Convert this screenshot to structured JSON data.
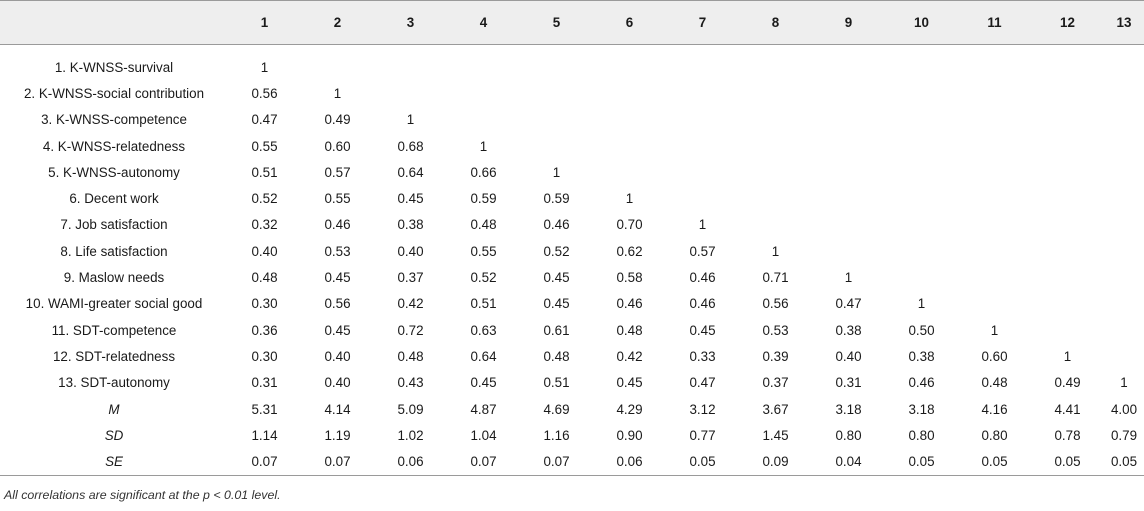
{
  "header": [
    "",
    "1",
    "2",
    "3",
    "4",
    "5",
    "6",
    "7",
    "8",
    "9",
    "10",
    "11",
    "12",
    "13"
  ],
  "rows": [
    {
      "label": "1. K-WNSS-survival",
      "cells": [
        "1",
        "",
        "",
        "",
        "",
        "",
        "",
        "",
        "",
        "",
        "",
        "",
        ""
      ]
    },
    {
      "label": "2. K-WNSS-social contribution",
      "cells": [
        "0.56",
        "1",
        "",
        "",
        "",
        "",
        "",
        "",
        "",
        "",
        "",
        "",
        ""
      ]
    },
    {
      "label": "3. K-WNSS-competence",
      "cells": [
        "0.47",
        "0.49",
        "1",
        "",
        "",
        "",
        "",
        "",
        "",
        "",
        "",
        "",
        ""
      ]
    },
    {
      "label": "4. K-WNSS-relatedness",
      "cells": [
        "0.55",
        "0.60",
        "0.68",
        "1",
        "",
        "",
        "",
        "",
        "",
        "",
        "",
        "",
        ""
      ]
    },
    {
      "label": "5. K-WNSS-autonomy",
      "cells": [
        "0.51",
        "0.57",
        "0.64",
        "0.66",
        "1",
        "",
        "",
        "",
        "",
        "",
        "",
        "",
        ""
      ]
    },
    {
      "label": "6. Decent work",
      "cells": [
        "0.52",
        "0.55",
        "0.45",
        "0.59",
        "0.59",
        "1",
        "",
        "",
        "",
        "",
        "",
        "",
        ""
      ]
    },
    {
      "label": "7. Job satisfaction",
      "cells": [
        "0.32",
        "0.46",
        "0.38",
        "0.48",
        "0.46",
        "0.70",
        "1",
        "",
        "",
        "",
        "",
        "",
        ""
      ]
    },
    {
      "label": "8. Life satisfaction",
      "cells": [
        "0.40",
        "0.53",
        "0.40",
        "0.55",
        "0.52",
        "0.62",
        "0.57",
        "1",
        "",
        "",
        "",
        "",
        ""
      ]
    },
    {
      "label": "9. Maslow needs",
      "cells": [
        "0.48",
        "0.45",
        "0.37",
        "0.52",
        "0.45",
        "0.58",
        "0.46",
        "0.71",
        "1",
        "",
        "",
        "",
        ""
      ]
    },
    {
      "label": "10. WAMI-greater social good",
      "cells": [
        "0.30",
        "0.56",
        "0.42",
        "0.51",
        "0.45",
        "0.46",
        "0.46",
        "0.56",
        "0.47",
        "1",
        "",
        "",
        ""
      ]
    },
    {
      "label": "11. SDT-competence",
      "cells": [
        "0.36",
        "0.45",
        "0.72",
        "0.63",
        "0.61",
        "0.48",
        "0.45",
        "0.53",
        "0.38",
        "0.50",
        "1",
        "",
        ""
      ]
    },
    {
      "label": "12. SDT-relatedness",
      "cells": [
        "0.30",
        "0.40",
        "0.48",
        "0.64",
        "0.48",
        "0.42",
        "0.33",
        "0.39",
        "0.40",
        "0.38",
        "0.60",
        "1",
        ""
      ]
    },
    {
      "label": "13. SDT-autonomy",
      "cells": [
        "0.31",
        "0.40",
        "0.43",
        "0.45",
        "0.51",
        "0.45",
        "0.47",
        "0.37",
        "0.31",
        "0.46",
        "0.48",
        "0.49",
        "1"
      ]
    }
  ],
  "stats": [
    {
      "label": "M",
      "cells": [
        "5.31",
        "4.14",
        "5.09",
        "4.87",
        "4.69",
        "4.29",
        "3.12",
        "3.67",
        "3.18",
        "3.18",
        "4.16",
        "4.41",
        "4.00"
      ]
    },
    {
      "label": "SD",
      "cells": [
        "1.14",
        "1.19",
        "1.02",
        "1.04",
        "1.16",
        "0.90",
        "0.77",
        "1.45",
        "0.80",
        "0.80",
        "0.80",
        "0.78",
        "0.79"
      ]
    },
    {
      "label": "SE",
      "cells": [
        "0.07",
        "0.07",
        "0.06",
        "0.07",
        "0.07",
        "0.06",
        "0.05",
        "0.09",
        "0.04",
        "0.05",
        "0.05",
        "0.05",
        "0.05"
      ]
    }
  ],
  "note": "All correlations are significant at the p < 0.01 level."
}
